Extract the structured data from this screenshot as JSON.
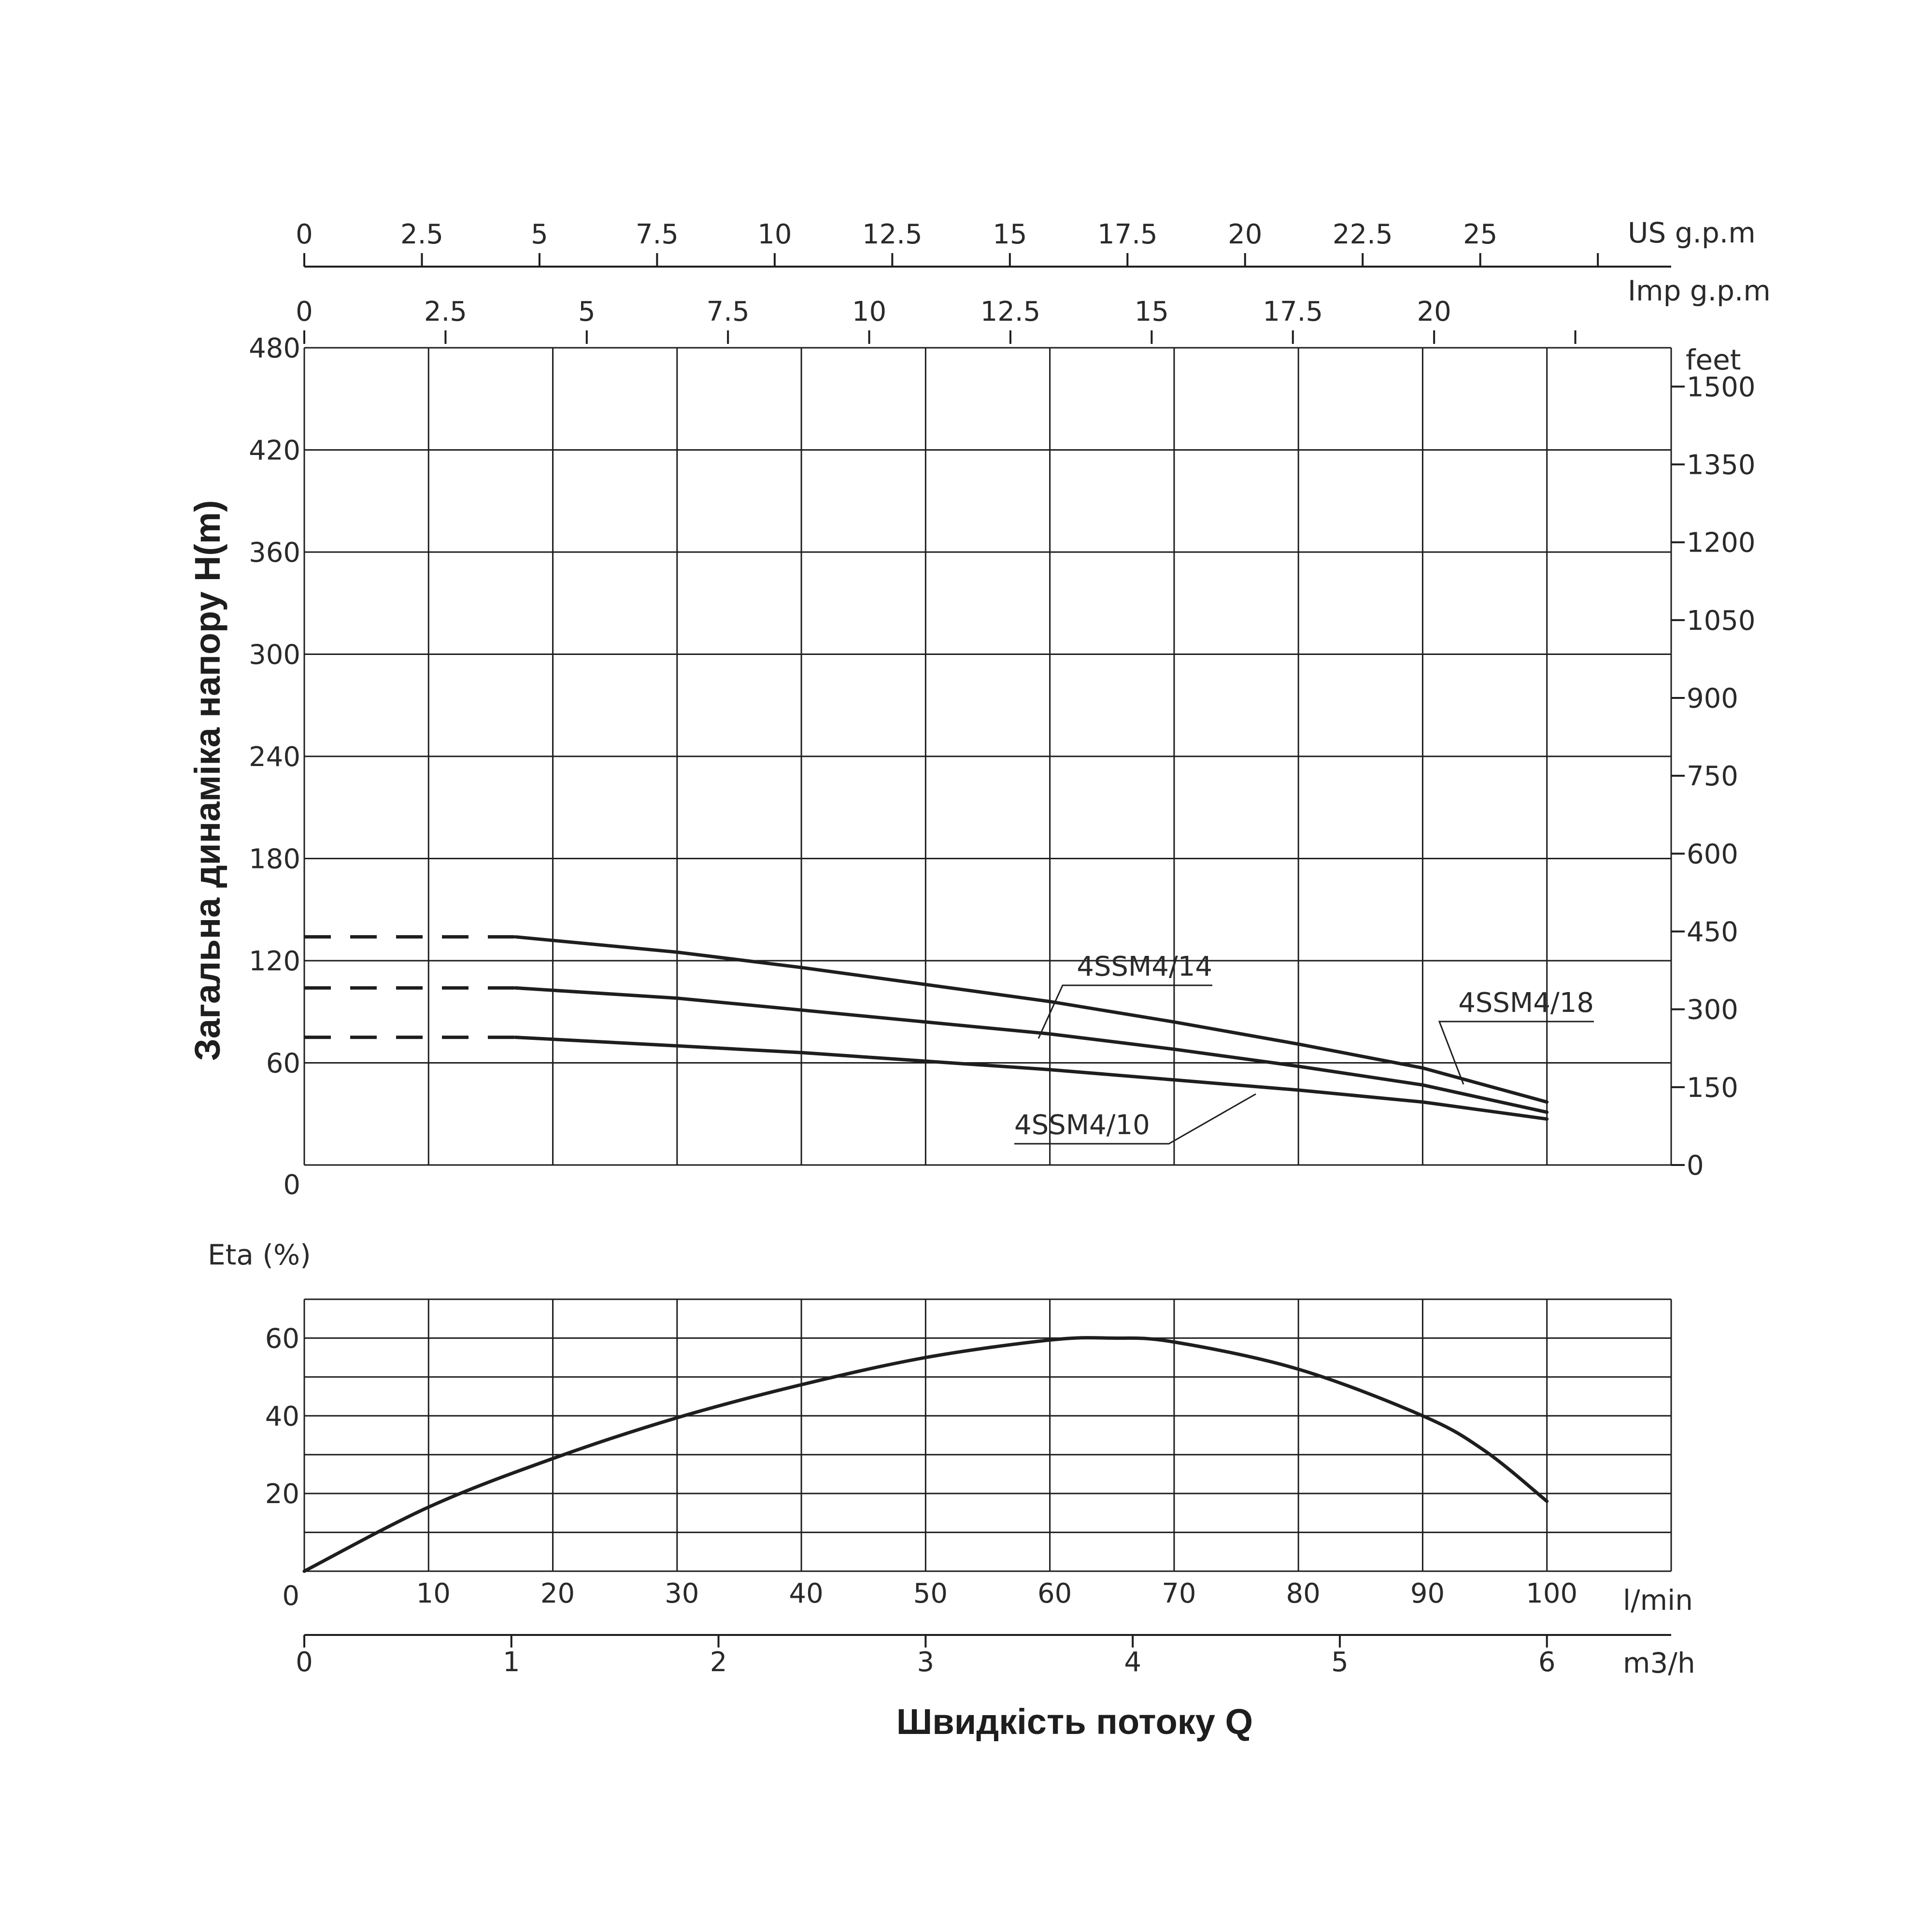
{
  "chart_data": [
    {
      "type": "line",
      "title": "",
      "x_unit": "l/min",
      "ylabel": "Загальна динаміка напору H(m)",
      "xlim": [
        0,
        110
      ],
      "ylim": [
        0,
        480
      ],
      "x_ticks_lmin": [
        "0",
        "10",
        "20",
        "30",
        "40",
        "50",
        "60",
        "70",
        "80",
        "90",
        "100"
      ],
      "y_ticks": [
        "0",
        "60",
        "120",
        "180",
        "240",
        "300",
        "360",
        "420",
        "480"
      ],
      "right_axis": {
        "unit": "feet",
        "ticks": [
          {
            "label": "0",
            "ft": 0
          },
          {
            "label": "150",
            "ft": 150
          },
          {
            "label": "300",
            "ft": 300
          },
          {
            "label": "450",
            "ft": 450
          },
          {
            "label": "600",
            "ft": 600
          },
          {
            "label": "750",
            "ft": 750
          },
          {
            "label": "900",
            "ft": 900
          },
          {
            "label": "1050",
            "ft": 1050
          },
          {
            "label": "1200",
            "ft": 1200
          },
          {
            "label": "1350",
            "ft": 1350
          },
          {
            "label": "1500",
            "ft": 1500
          }
        ]
      },
      "top_axis_us": {
        "unit": "US g.p.m",
        "ticks": [
          "0",
          "2.5",
          "5",
          "7.5",
          "10",
          "12.5",
          "15",
          "17.5",
          "20",
          "22.5",
          "25"
        ]
      },
      "top_axis_imp": {
        "unit": "Imp g.p.m",
        "ticks": [
          "0",
          "2.5",
          "5",
          "7.5",
          "10",
          "12.5",
          "15",
          "17.5",
          "20"
        ]
      },
      "grid": true,
      "series": [
        {
          "name": "4SSM4/18",
          "dashed_x": [
            0,
            17
          ],
          "dashed_y": 134,
          "x": [
            17,
            30,
            40,
            50,
            60,
            70,
            80,
            90,
            100
          ],
          "y": [
            134,
            125,
            116,
            106,
            96,
            84,
            71,
            57,
            37
          ]
        },
        {
          "name": "4SSM4/14",
          "dashed_x": [
            0,
            17
          ],
          "dashed_y": 104,
          "x": [
            17,
            30,
            40,
            50,
            60,
            70,
            80,
            90,
            100
          ],
          "y": [
            104,
            98,
            91,
            84,
            77,
            68,
            58,
            47,
            31
          ]
        },
        {
          "name": "4SSM4/10",
          "dashed_x": [
            0,
            17
          ],
          "dashed_y": 75,
          "x": [
            17,
            30,
            40,
            50,
            60,
            70,
            80,
            90,
            100
          ],
          "y": [
            75,
            70,
            66,
            61,
            56,
            50,
            44,
            37,
            27
          ]
        }
      ]
    },
    {
      "type": "line",
      "title": "",
      "ylabel": "Eta (%)",
      "xlabel": "Швидкість потоку Q",
      "x_unit": "l/min",
      "x_unit_secondary": "m3/h",
      "xlim": [
        0,
        110
      ],
      "ylim": [
        0,
        70
      ],
      "y_ticks": [
        "0",
        "20",
        "40",
        "60"
      ],
      "x_ticks_lmin": [
        "0",
        "10",
        "20",
        "30",
        "40",
        "50",
        "60",
        "70",
        "80",
        "90",
        "100"
      ],
      "x_ticks_m3h": [
        "0",
        "1",
        "2",
        "3",
        "4",
        "5",
        "6"
      ],
      "grid": true,
      "series": [
        {
          "name": "",
          "x": [
            0,
            10,
            20,
            30,
            40,
            50,
            60,
            65,
            70,
            80,
            90,
            95,
            100
          ],
          "y": [
            0,
            16.5,
            29,
            39.5,
            48,
            55,
            59.5,
            60,
            59,
            52,
            40,
            31,
            18
          ]
        }
      ]
    }
  ]
}
